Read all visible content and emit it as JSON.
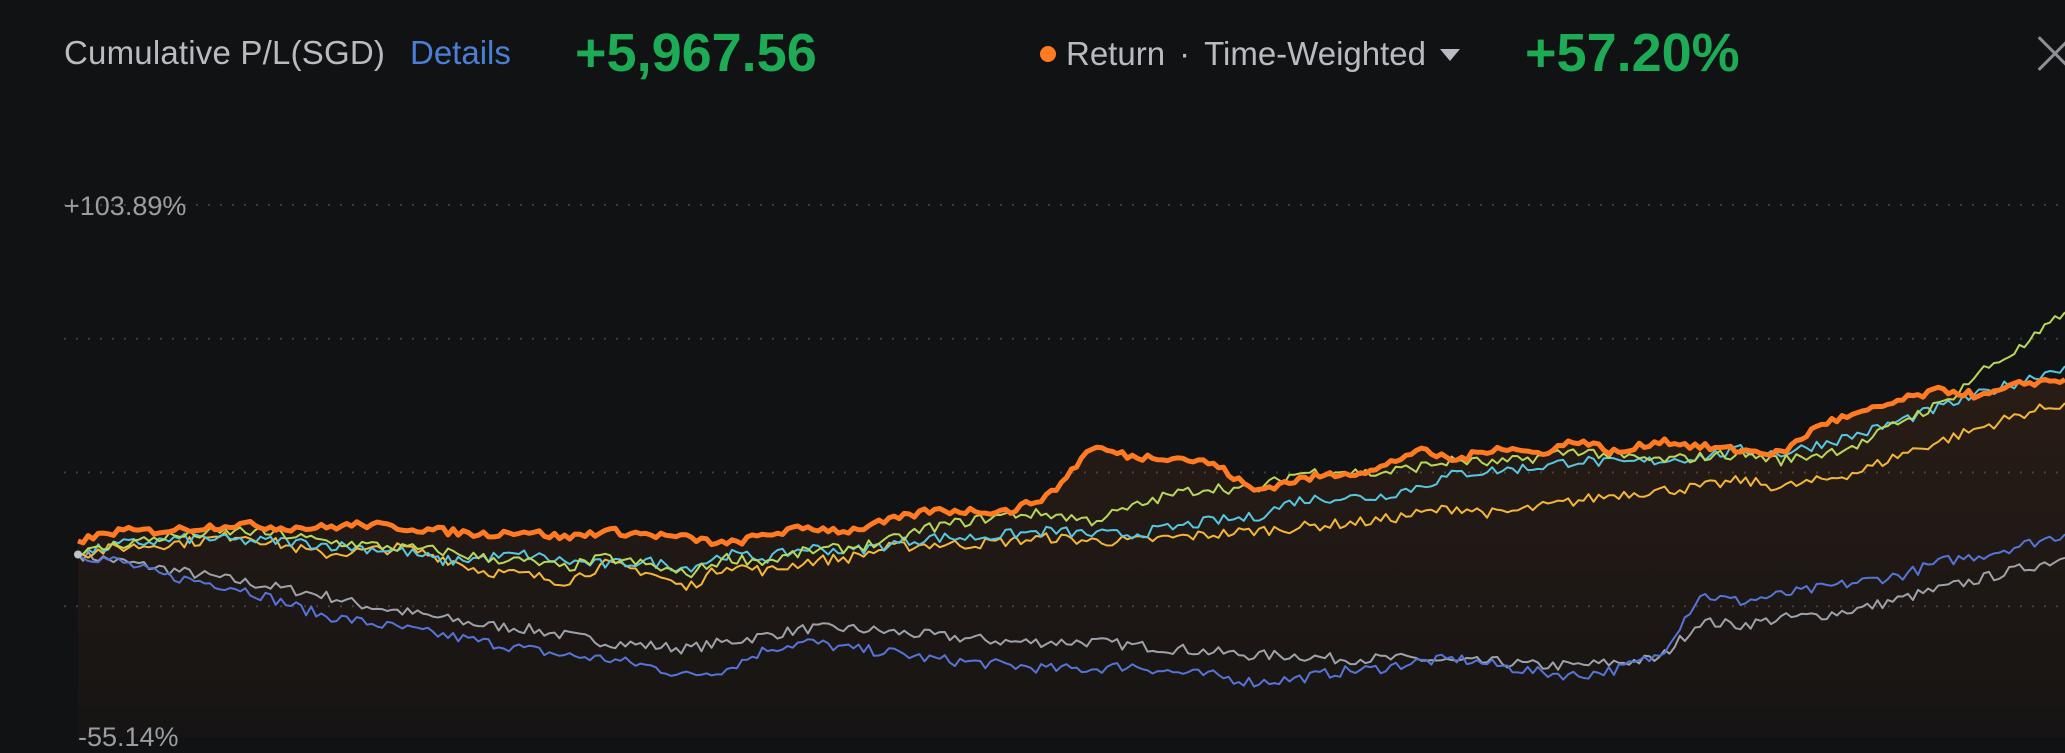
{
  "header": {
    "pl_label": "Cumulative P/L(SGD)",
    "details_label": "Details",
    "pl_value": "+5,967.56",
    "return_label": "Return",
    "separator": "·",
    "method_label": "Time-Weighted",
    "return_value": "+57.20%"
  },
  "colors": {
    "background": "#111214",
    "positive": "#1dab55",
    "link": "#4a7fd6",
    "portfolio": "#ff7a22"
  },
  "chart_data": {
    "type": "line",
    "ylim": [
      -55.14,
      103.89
    ],
    "yticks": [
      "+103.89%",
      "-55.14%"
    ],
    "grid": true,
    "x_points": 50,
    "series": [
      {
        "color": "#ff7a22",
        "highlighted": true,
        "values": [
          4,
          7,
          7,
          8,
          9,
          8,
          8,
          9,
          8,
          7,
          6,
          7,
          5,
          7,
          6,
          5,
          3,
          6,
          8,
          7,
          10,
          13,
          13,
          13,
          18,
          32,
          29,
          29,
          27,
          19,
          22,
          24,
          25,
          31,
          28,
          32,
          30,
          34,
          30,
          34,
          32,
          31,
          30,
          39,
          42,
          46,
          49,
          47,
          51,
          52
        ]
      },
      {
        "color": "#b7d65a",
        "values": [
          0,
          3,
          5,
          6,
          7,
          6,
          4,
          3,
          2,
          1,
          -1,
          -2,
          -4,
          -1,
          -3,
          -6,
          -1,
          -2,
          1,
          2,
          4,
          8,
          10,
          12,
          12,
          10,
          14,
          18,
          20,
          19,
          24,
          25,
          24,
          26,
          28,
          27,
          29,
          31,
          29,
          28,
          29,
          30,
          28,
          30,
          33,
          40,
          45,
          55,
          62,
          72
        ]
      },
      {
        "color": "#57c6e0",
        "values": [
          0,
          3,
          4,
          5,
          4,
          4,
          3,
          2,
          1,
          -2,
          -1,
          0,
          -2,
          -3,
          -2,
          -4,
          0,
          -1,
          2,
          1,
          3,
          5,
          5,
          6,
          7,
          6,
          6,
          8,
          10,
          11,
          16,
          17,
          17,
          20,
          24,
          25,
          26,
          28,
          27,
          28,
          29,
          31,
          30,
          33,
          36,
          40,
          44,
          48,
          52,
          56
        ]
      },
      {
        "color": "#f3b63a",
        "values": [
          0,
          2,
          3,
          4,
          6,
          3,
          0,
          1,
          2,
          -1,
          -5,
          -6,
          -8,
          -3,
          -5,
          -10,
          -3,
          -5,
          -2,
          -1,
          2,
          3,
          3,
          4,
          5,
          4,
          4,
          5,
          6,
          7,
          8,
          9,
          10,
          12,
          14,
          12,
          14,
          16,
          18,
          19,
          20,
          22,
          20,
          22,
          25,
          30,
          34,
          38,
          42,
          45
        ]
      },
      {
        "color": "#5673d6",
        "values": [
          0,
          -2,
          -6,
          -8,
          -10,
          -14,
          -18,
          -20,
          -22,
          -24,
          -26,
          -28,
          -30,
          -31,
          -33,
          -36,
          -34,
          -28,
          -26,
          -28,
          -29,
          -31,
          -32,
          -33,
          -34,
          -34,
          -33,
          -35,
          -36,
          -38,
          -37,
          -35,
          -34,
          -32,
          -31,
          -33,
          -35,
          -36,
          -34,
          -30,
          -12,
          -14,
          -12,
          -10,
          -8,
          -6,
          -2,
          0,
          3,
          6
        ]
      },
      {
        "color": "#9ea2a8",
        "values": [
          0,
          -2,
          -4,
          -6,
          -8,
          -10,
          -12,
          -15,
          -17,
          -19,
          -21,
          -22,
          -24,
          -26,
          -27,
          -28,
          -26,
          -24,
          -22,
          -22,
          -23,
          -24,
          -25,
          -26,
          -26,
          -26,
          -27,
          -28,
          -29,
          -30,
          -30,
          -31,
          -31,
          -31,
          -32,
          -32,
          -33,
          -33,
          -32,
          -31,
          -20,
          -21,
          -19,
          -18,
          -16,
          -13,
          -10,
          -7,
          -4,
          -1
        ]
      }
    ]
  }
}
